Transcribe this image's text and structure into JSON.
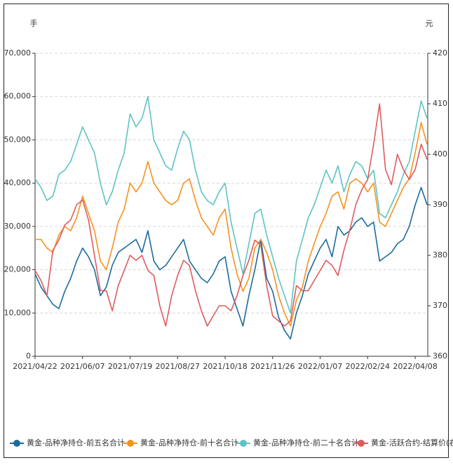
{
  "chart_data": {
    "type": "line",
    "y_label": "手",
    "y2_label": "元",
    "categories": [
      "2021/04/22",
      null,
      null,
      null,
      null,
      null,
      null,
      null,
      "2021/06/07",
      null,
      null,
      null,
      null,
      null,
      null,
      null,
      "2021/07/19",
      null,
      null,
      null,
      null,
      null,
      null,
      null,
      "2021/08/27",
      null,
      null,
      null,
      null,
      null,
      null,
      null,
      "2021/10/18",
      null,
      null,
      null,
      null,
      null,
      null,
      null,
      "2021/11/26",
      null,
      null,
      null,
      null,
      null,
      null,
      null,
      "2022/01/07",
      null,
      null,
      null,
      null,
      null,
      null,
      null,
      "2022/02/24",
      null,
      null,
      null,
      null,
      null,
      null,
      null,
      "2022/04/08",
      null,
      null
    ],
    "ylim": [
      0,
      70000
    ],
    "yticks": [
      0,
      {
        "value": 10000,
        "label": "10,000"
      },
      {
        "value": 20000,
        "label": "20,000"
      },
      {
        "value": 30000,
        "label": "30,000"
      },
      {
        "value": 40000,
        "label": "40,000"
      },
      {
        "value": 50000,
        "label": "50,000"
      },
      {
        "value": 60000,
        "label": "60,000"
      },
      {
        "value": 70000,
        "label": "70,000"
      }
    ],
    "y2lim": [
      360,
      420
    ],
    "y2ticks": [
      360,
      370,
      380,
      390,
      400,
      410,
      420
    ],
    "grid": true,
    "legend": "bottom",
    "series": [
      {
        "name": "黄金-品种净持仓-前五名合计",
        "color": "#1b6b9e",
        "values": [
          19000,
          16000,
          14000,
          12000,
          11000,
          15000,
          18000,
          22000,
          25000,
          23000,
          20000,
          14000,
          16000,
          21000,
          24000,
          25000,
          26000,
          27000,
          24000,
          29000,
          22000,
          20000,
          21000,
          23000,
          25000,
          27000,
          22000,
          20000,
          18000,
          17000,
          19000,
          22000,
          23000,
          15000,
          11000,
          7000,
          14000,
          20000,
          27000,
          18000,
          15000,
          9000,
          6000,
          4000,
          10000,
          14000,
          19000,
          22000,
          25000,
          27000,
          23000,
          30000,
          28000,
          29000,
          31000,
          32000,
          30000,
          31000,
          22000,
          23000,
          24000,
          26000,
          27000,
          30000,
          35000,
          39000,
          35000
        ]
      },
      {
        "name": "黄金-品种净持仓-前十名合计",
        "color": "#f5921e",
        "values": [
          27000,
          27000,
          25000,
          24000,
          28000,
          30000,
          29000,
          32000,
          37000,
          33000,
          29000,
          22000,
          20000,
          25000,
          31000,
          34000,
          40000,
          38000,
          40000,
          45000,
          40000,
          38000,
          36000,
          35000,
          36000,
          40000,
          41000,
          36000,
          32000,
          30000,
          28000,
          32000,
          34000,
          25000,
          19000,
          15000,
          18000,
          25000,
          27000,
          24000,
          20000,
          14000,
          10000,
          7000,
          13000,
          16000,
          22000,
          26000,
          30000,
          33000,
          37000,
          38000,
          34000,
          40000,
          41000,
          40000,
          38000,
          40000,
          31000,
          30000,
          33000,
          36000,
          39000,
          41000,
          47000,
          54000,
          49000
        ]
      },
      {
        "name": "黄金-品种净持仓-前二十名合计",
        "color": "#5ec3c3",
        "values": [
          41000,
          39000,
          36000,
          37000,
          42000,
          43000,
          45000,
          49000,
          53000,
          50000,
          47000,
          40000,
          35000,
          38000,
          43000,
          47000,
          56000,
          53000,
          55000,
          60000,
          50000,
          47000,
          44000,
          43000,
          48000,
          52000,
          50000,
          43000,
          38000,
          36000,
          35000,
          38000,
          40000,
          31000,
          25000,
          19000,
          26000,
          33000,
          34000,
          28000,
          23000,
          18000,
          14000,
          10000,
          22000,
          27000,
          32000,
          35000,
          39000,
          43000,
          40000,
          44000,
          38000,
          42000,
          45000,
          44000,
          41000,
          43000,
          33000,
          32000,
          35000,
          38000,
          42000,
          45000,
          52000,
          59000,
          55000
        ]
      },
      {
        "name": "黄金-活跃合约-结算价(右)",
        "color": "#de5b5e",
        "axis": "y2",
        "values": [
          377,
          375,
          372,
          381,
          383,
          386,
          387,
          390,
          391,
          387,
          380,
          373,
          373,
          369,
          374,
          377,
          380,
          379,
          380,
          377,
          376,
          370,
          366,
          372,
          376,
          379,
          378,
          373,
          369,
          366,
          368,
          370,
          370,
          369,
          372,
          376,
          379,
          383,
          382,
          374,
          368,
          367,
          366,
          367,
          374,
          373,
          373,
          375,
          377,
          379,
          378,
          376,
          381,
          385,
          390,
          393,
          395,
          402,
          410,
          397,
          394,
          400,
          397,
          395,
          397,
          402,
          399
        ]
      }
    ]
  }
}
